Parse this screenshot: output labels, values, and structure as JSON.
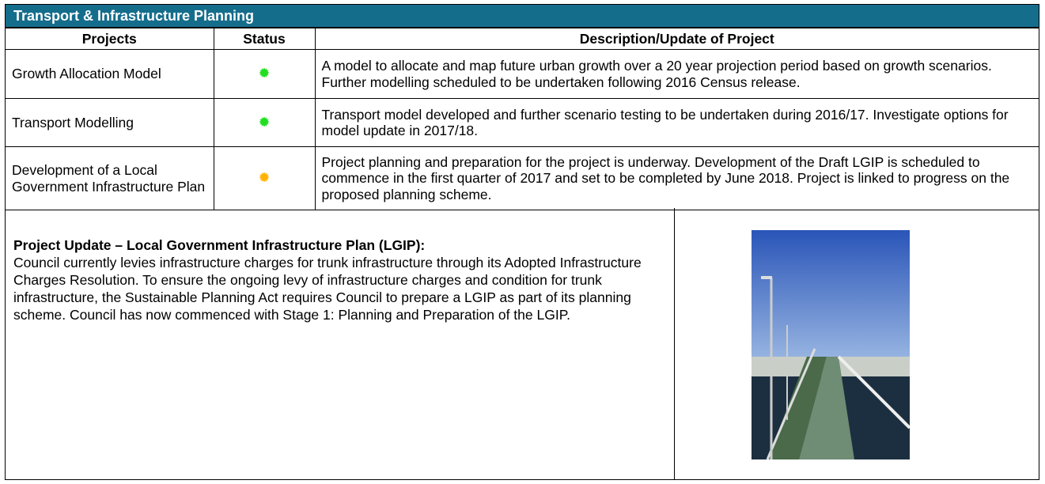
{
  "header": {
    "title": "Transport & Infrastructure Planning"
  },
  "table": {
    "columns": [
      "Projects",
      "Status",
      "Description/Update of Project"
    ],
    "rows": [
      {
        "project": "Growth Allocation Model",
        "status_color": "#22dd22",
        "description": "A model to allocate and map future urban growth over a 20 year projection period based on growth scenarios. Further modelling scheduled to be undertaken following 2016 Census release."
      },
      {
        "project": "Transport Modelling",
        "status_color": "#22dd22",
        "description": "Transport model developed and further scenario testing to be undertaken during 2016/17. Investigate options for model update in 2017/18."
      },
      {
        "project": "Development of a Local Government Infrastructure Plan",
        "status_color": "#ffb300",
        "description": "Project planning and preparation for the project is underway. Development of the Draft LGIP is scheduled to commence in the first quarter of 2017 and set to be completed by June 2018. Project is linked to progress on the proposed planning scheme."
      }
    ]
  },
  "update": {
    "heading": "Project Update – Local Government Infrastructure Plan (LGIP):",
    "body": "Council currently levies infrastructure charges for trunk infrastructure through its Adopted Infrastructure Charges Resolution. To ensure the ongoing levy of infrastructure charges and condition for trunk infrastructure, the Sustainable Planning Act requires Council to prepare a LGIP as part of its planning scheme. Council has now commenced with Stage 1: Planning and Preparation of the LGIP."
  }
}
